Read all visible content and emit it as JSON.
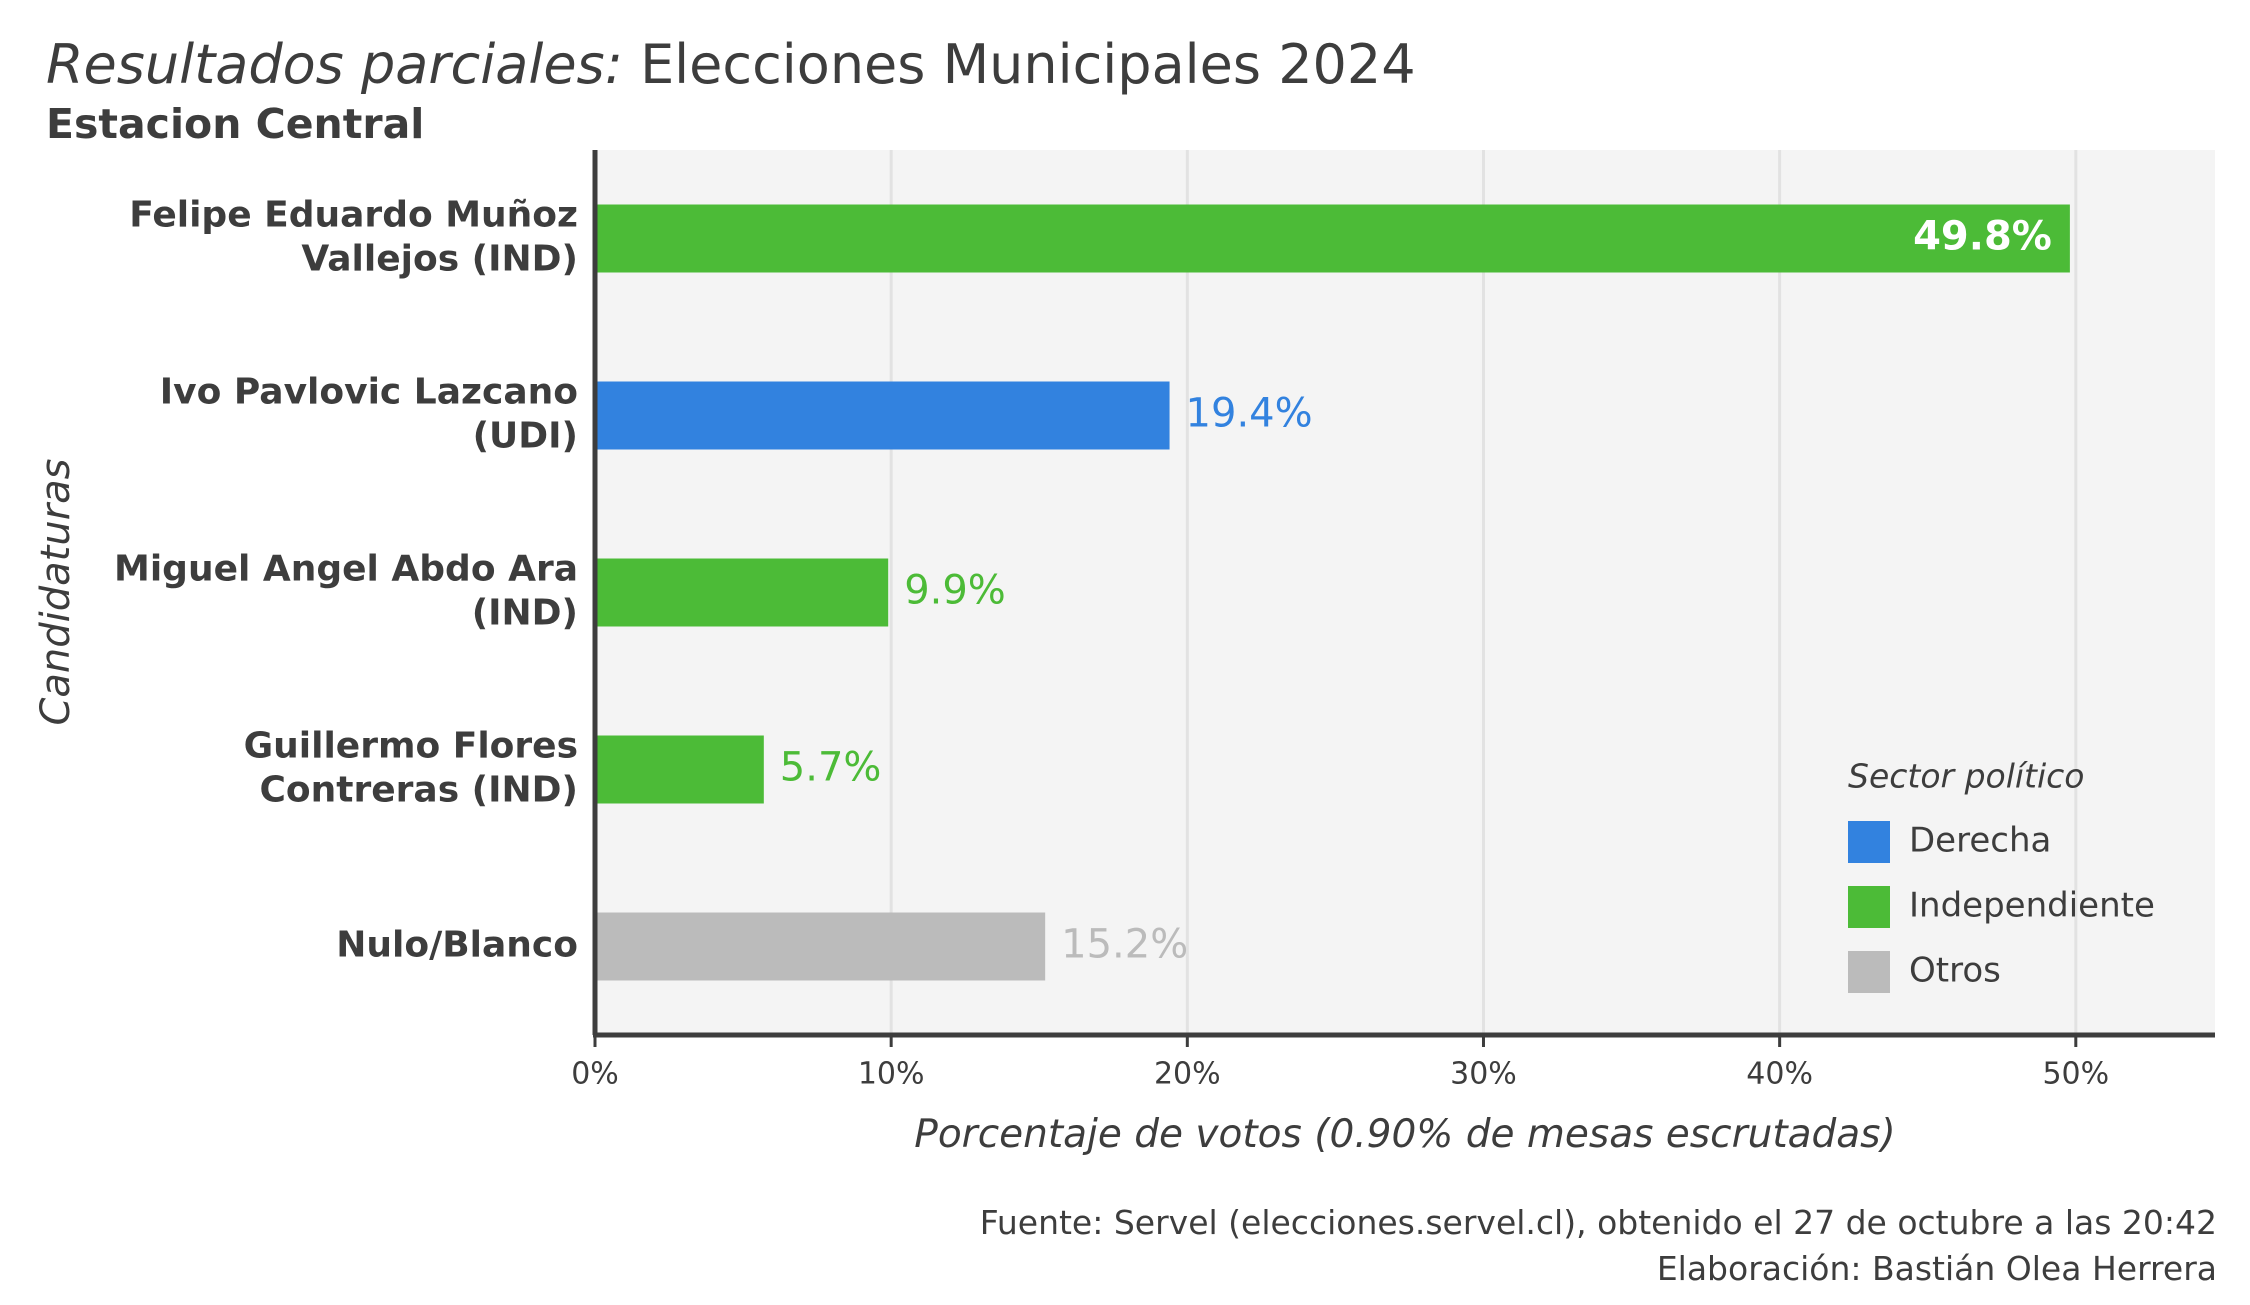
{
  "header": {
    "title_italic": "Resultados parciales:",
    "title_rest": "Elecciones Municipales 2024",
    "subtitle": "Estacion Central"
  },
  "footer": {
    "source": "Fuente: Servel (elecciones.servel.cl), obtenido el 27 de octubre a las 20:42",
    "credit": "Elaboración: Bastián Olea Herrera"
  },
  "colors": {
    "Derecha": "#3282DF",
    "Independiente": "#4CBB37",
    "Otros": "#BBBBBB",
    "panel": "#F4F4F4",
    "grid": "#E2E2E2",
    "axis": "#3D3D3D"
  },
  "chart_data": {
    "type": "bar",
    "orientation": "horizontal",
    "xlabel": "Porcentaje de votos (0.90% de mesas escrutadas)",
    "ylabel": "Candidaturas",
    "xlim": [
      0,
      54.7
    ],
    "xticks": [
      0,
      10,
      20,
      30,
      40,
      50
    ],
    "xtick_labels": [
      "0%",
      "10%",
      "20%",
      "30%",
      "40%",
      "50%"
    ],
    "grid": true,
    "legend": {
      "title": "Sector político",
      "position": "bottom-right",
      "entries": [
        "Derecha",
        "Independiente",
        "Otros"
      ]
    },
    "bars": [
      {
        "label_lines": [
          "Felipe Eduardo Muñoz",
          "Vallejos (IND)"
        ],
        "value": 49.8,
        "value_label": "49.8%",
        "sector": "Independiente",
        "label_inside": true
      },
      {
        "label_lines": [
          "Ivo Pavlovic Lazcano",
          "(UDI)"
        ],
        "value": 19.4,
        "value_label": "19.4%",
        "sector": "Derecha",
        "label_inside": false
      },
      {
        "label_lines": [
          "Miguel Angel Abdo Ara",
          "(IND)"
        ],
        "value": 9.9,
        "value_label": "9.9%",
        "sector": "Independiente",
        "label_inside": false
      },
      {
        "label_lines": [
          "Guillermo Flores",
          "Contreras (IND)"
        ],
        "value": 5.7,
        "value_label": "5.7%",
        "sector": "Independiente",
        "label_inside": false
      },
      {
        "label_lines": [
          "Nulo/Blanco"
        ],
        "value": 15.2,
        "value_label": "15.2%",
        "sector": "Otros",
        "label_inside": false
      }
    ]
  }
}
